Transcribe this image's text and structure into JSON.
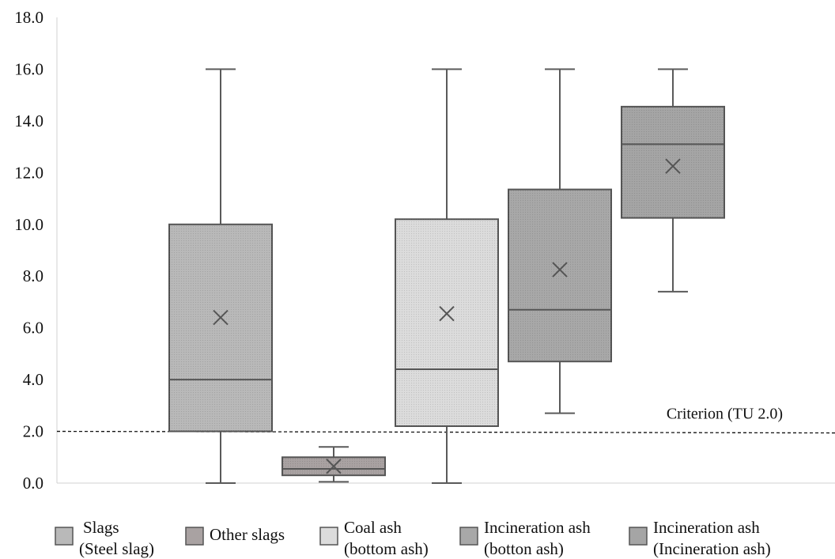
{
  "chart_data": {
    "type": "box",
    "ylim": [
      0,
      18
    ],
    "yticks": [
      "0.0",
      "2.0",
      "4.0",
      "6.0",
      "8.0",
      "10.0",
      "12.0",
      "14.0",
      "16.0",
      "18.0"
    ],
    "grid": false,
    "legend_position": "bottom",
    "series": [
      {
        "name": "Slags\n(Steel slag)",
        "lines": [
          "Slags",
          "(Steel slag)"
        ],
        "color": "#b9b9b9",
        "min": 0.0,
        "q1": 2.0,
        "median": 4.0,
        "q3": 10.0,
        "max": 16.0,
        "mean": 6.4
      },
      {
        "name": "Other slags",
        "lines": [
          "Other slags"
        ],
        "color": "#a9a2a2",
        "min": 0.05,
        "q1": 0.3,
        "median": 0.55,
        "q3": 1.0,
        "max": 1.4,
        "mean": 0.65
      },
      {
        "name": "Coal ash\n(bottom ash)",
        "lines": [
          "Coal ash",
          "(bottom ash)"
        ],
        "color": "#dcdcdc",
        "min": 0.0,
        "q1": 2.2,
        "median": 4.4,
        "q3": 10.2,
        "max": 16.0,
        "mean": 6.55
      },
      {
        "name": "Incineration ash\n(botton ash)",
        "lines": [
          "Incineration ash",
          "(botton ash)"
        ],
        "color": "#a8a8a8",
        "min": 2.7,
        "q1": 4.7,
        "median": 6.7,
        "q3": 11.35,
        "max": 16.0,
        "mean": 8.25
      },
      {
        "name": "Incineration ash\n(Incineration ash)",
        "lines": [
          "Incineration ash",
          "(Incineration ash)"
        ],
        "color": "#a5a5a5",
        "min": 7.4,
        "q1": 10.25,
        "median": 13.1,
        "q3": 14.55,
        "max": 16.0,
        "mean": 12.25
      }
    ],
    "reference_line": {
      "value": 2.0,
      "label": "Criterion (TU 2.0)"
    }
  }
}
